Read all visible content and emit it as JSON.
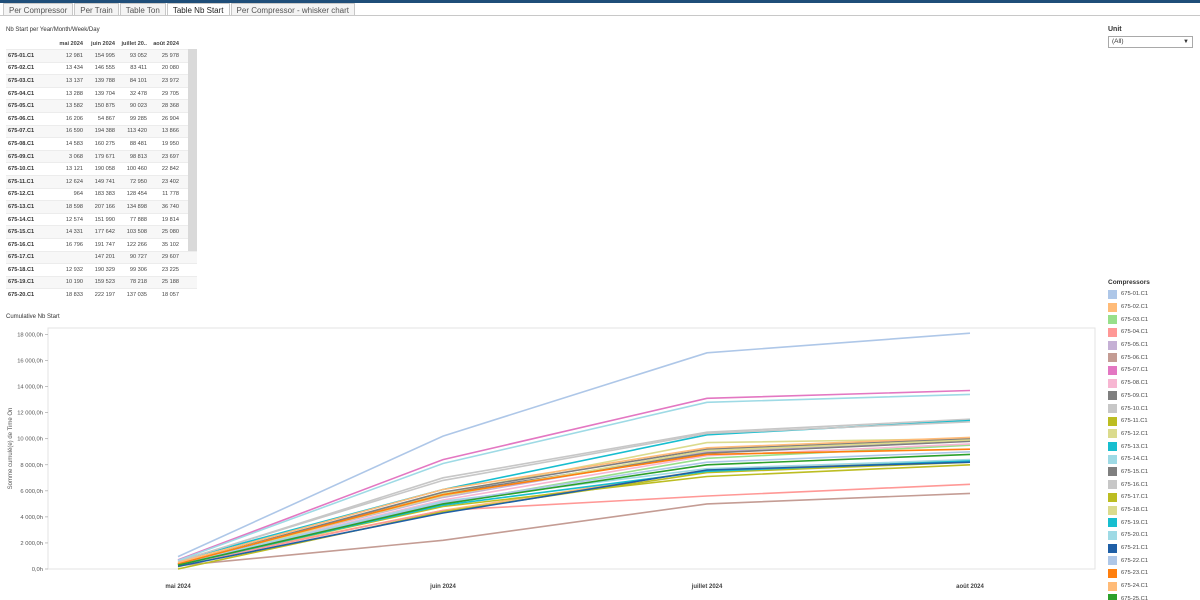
{
  "tabs": [
    {
      "label": "Per Compressor",
      "active": false
    },
    {
      "label": "Per Train",
      "active": false
    },
    {
      "label": "Table Ton",
      "active": false
    },
    {
      "label": "Table Nb Start",
      "active": true
    },
    {
      "label": "Per Compressor - whisker chart",
      "active": false
    }
  ],
  "table": {
    "title": "Nb Start per Year/Month/Week/Day",
    "columns": [
      "mai 2024",
      "juin 2024",
      "juillet 20..",
      "août 2024"
    ],
    "rows": [
      {
        "unit": "675-01.C1",
        "values": [
          "12 981",
          "154 995",
          "93 052",
          "25 978"
        ]
      },
      {
        "unit": "675-02.C1",
        "values": [
          "13 434",
          "146 555",
          "83 411",
          "20 080"
        ]
      },
      {
        "unit": "675-03.C1",
        "values": [
          "13 137",
          "139 788",
          "84 101",
          "23 972"
        ]
      },
      {
        "unit": "675-04.C1",
        "values": [
          "13 288",
          "139 704",
          "32 478",
          "29 705"
        ]
      },
      {
        "unit": "675-05.C1",
        "values": [
          "13 582",
          "150 875",
          "90 023",
          "28 368"
        ]
      },
      {
        "unit": "675-06.C1",
        "values": [
          "16 206",
          "54 867",
          "99 285",
          "26 904"
        ]
      },
      {
        "unit": "675-07.C1",
        "values": [
          "16 590",
          "194 388",
          "113 420",
          "13 866"
        ]
      },
      {
        "unit": "675-08.C1",
        "values": [
          "14 583",
          "160 275",
          "88 481",
          "19 950"
        ]
      },
      {
        "unit": "675-09.C1",
        "values": [
          "3 068",
          "179 671",
          "98 813",
          "23 697"
        ]
      },
      {
        "unit": "675-10.C1",
        "values": [
          "13 121",
          "190 058",
          "100 460",
          "22 842"
        ]
      },
      {
        "unit": "675-11.C1",
        "values": [
          "12 624",
          "149 741",
          "72 950",
          "23 402"
        ]
      },
      {
        "unit": "675-12.C1",
        "values": [
          "964",
          "183 383",
          "128 454",
          "11 778"
        ]
      },
      {
        "unit": "675-13.C1",
        "values": [
          "18 598",
          "207 166",
          "134 898",
          "36 740"
        ]
      },
      {
        "unit": "675-14.C1",
        "values": [
          "12 574",
          "151 990",
          "77 888",
          "19 814"
        ]
      },
      {
        "unit": "675-15.C1",
        "values": [
          "14 331",
          "177 642",
          "103 508",
          "25 080"
        ]
      },
      {
        "unit": "675-16.C1",
        "values": [
          "16 796",
          "191 747",
          "122 266",
          "35 102"
        ]
      },
      {
        "unit": "675-17.C1",
        "values": [
          "",
          "147 201",
          "90 727",
          "29 607"
        ]
      },
      {
        "unit": "675-18.C1",
        "values": [
          "12 932",
          "190 329",
          "99 306",
          "23 225"
        ]
      },
      {
        "unit": "675-19.C1",
        "values": [
          "10 190",
          "159 523",
          "78 218",
          "25 188"
        ]
      },
      {
        "unit": "675-20.C1",
        "values": [
          "18 833",
          "222 197",
          "137 035",
          "18 057"
        ]
      }
    ]
  },
  "filter": {
    "label": "Unit",
    "value": "(All)",
    "arrow_icon": "dropdown-arrow-icon"
  },
  "chart_data": {
    "type": "line",
    "title": "Cumulative Nb Start",
    "xlabel": "",
    "ylabel": "Somme cumulé(e) de Time On",
    "categories": [
      "mai 2024",
      "juin 2024",
      "juillet 2024",
      "août 2024"
    ],
    "ylim": [
      0,
      18500
    ],
    "yticks": [
      0,
      2000,
      4000,
      6000,
      8000,
      10000,
      12000,
      14000,
      16000,
      18000
    ],
    "ytick_labels": [
      "0,0h",
      "2 000,0h",
      "4 000,0h",
      "6 000,0h",
      "8 000,0h",
      "10 000,0h",
      "12 000,0h",
      "14 000,0h",
      "16 000,0h",
      "18 000,0h"
    ],
    "grid": false,
    "legend_title": "Compressors",
    "legend_position": "right",
    "series": [
      {
        "name": "675-01.C1",
        "color": "#aec7e8",
        "values": [
          950,
          10200,
          16600,
          18100
        ]
      },
      {
        "name": "675-02.C1",
        "color": "#ffbb78",
        "values": [
          400,
          4500,
          7600,
          8300
        ]
      },
      {
        "name": "675-03.C1",
        "color": "#98df8a",
        "values": [
          350,
          5000,
          8500,
          9500
        ]
      },
      {
        "name": "675-04.C1",
        "color": "#ff9896",
        "values": [
          300,
          4500,
          5600,
          6500
        ]
      },
      {
        "name": "675-05.C1",
        "color": "#c5b0d5",
        "values": [
          500,
          5500,
          9000,
          9900
        ]
      },
      {
        "name": "675-06.C1",
        "color": "#c49c94",
        "values": [
          250,
          2200,
          5000,
          5800
        ]
      },
      {
        "name": "675-07.C1",
        "color": "#e377c2",
        "values": [
          700,
          8400,
          13100,
          13700
        ]
      },
      {
        "name": "675-08.C1",
        "color": "#f7b6d2",
        "values": [
          450,
          5300,
          8700,
          9600
        ]
      },
      {
        "name": "675-09.C1",
        "color": "#7f7f7f",
        "values": [
          300,
          5800,
          8900,
          9800
        ]
      },
      {
        "name": "675-10.C1",
        "color": "#c7c7c7",
        "values": [
          550,
          7000,
          10500,
          11500
        ]
      },
      {
        "name": "675-11.C1",
        "color": "#bcbd22",
        "values": [
          350,
          4800,
          7100,
          8000
        ]
      },
      {
        "name": "675-12.C1",
        "color": "#dbdb8d",
        "values": [
          150,
          5800,
          9700,
          10000
        ]
      },
      {
        "name": "675-13.C1",
        "color": "#17becf",
        "values": [
          650,
          6100,
          10300,
          11400
        ]
      },
      {
        "name": "675-14.C1",
        "color": "#9edae5",
        "values": [
          400,
          5200,
          7700,
          8400
        ]
      },
      {
        "name": "675-15.C1",
        "color": "#7f7f7f",
        "values": [
          400,
          5900,
          9200,
          10000
        ]
      },
      {
        "name": "675-16.C1",
        "color": "#c7c7c7",
        "values": [
          600,
          6800,
          10400,
          11300
        ]
      },
      {
        "name": "675-17.C1",
        "color": "#bcbd22",
        "values": [
          0,
          4400,
          7400,
          8200
        ]
      },
      {
        "name": "675-18.C1",
        "color": "#dbdb8d",
        "values": [
          450,
          5600,
          9100,
          9900
        ]
      },
      {
        "name": "675-19.C1",
        "color": "#17becf",
        "values": [
          300,
          4900,
          7500,
          8300
        ]
      },
      {
        "name": "675-20.C1",
        "color": "#9edae5",
        "values": [
          650,
          8100,
          12800,
          13400
        ]
      },
      {
        "name": "675-21.C1",
        "color": "#1f5fa6",
        "values": [
          200,
          4300,
          7600,
          8200
        ]
      },
      {
        "name": "675-22.C1",
        "color": "#aec7e8",
        "values": [
          350,
          5100,
          8200,
          9000
        ]
      },
      {
        "name": "675-23.C1",
        "color": "#ff7f0e",
        "values": [
          400,
          5700,
          8800,
          9200
        ]
      },
      {
        "name": "675-24.C1",
        "color": "#ffbb78",
        "values": [
          500,
          6100,
          9300,
          10100
        ]
      },
      {
        "name": "675-25.C1",
        "color": "#2ca02c",
        "values": [
          300,
          5000,
          8000,
          8800
        ]
      }
    ]
  }
}
